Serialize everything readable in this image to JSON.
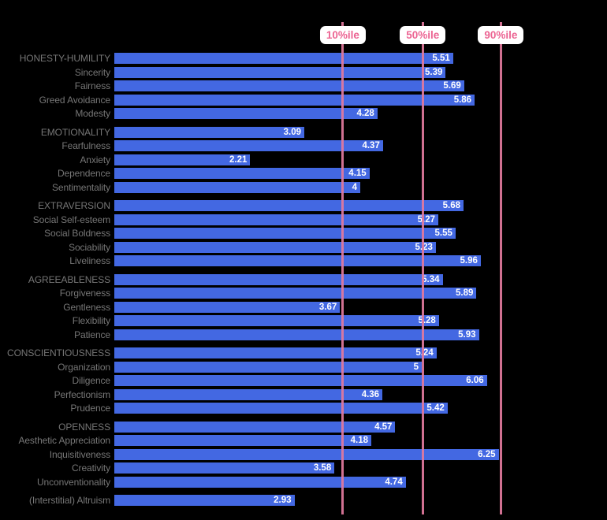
{
  "colors": {
    "background": "#000000",
    "bar": "#4368E2",
    "bar_value_text": "#FFFFFF",
    "row_label_text": "#767676",
    "percentile_line": "#E2799D",
    "percentile_label_text": "#EC6392",
    "percentile_label_bg": "#FFFFFF"
  },
  "chart_data": {
    "type": "bar",
    "orientation": "horizontal",
    "title": "",
    "xlabel": "",
    "ylabel": "",
    "axis": {
      "min": 0,
      "max": 7
    },
    "grid": false,
    "legend": false,
    "percentile_markers": [
      {
        "label": "10%ile",
        "value": 3.71
      },
      {
        "label": "50%ile",
        "value": 5.01
      },
      {
        "label": "90%ile",
        "value": 6.28
      }
    ],
    "groups": [
      {
        "name": "HONESTY-HUMILITY",
        "items": [
          {
            "label": "HONESTY-HUMILITY",
            "header": true,
            "value": 5.51,
            "display": "5.51"
          },
          {
            "label": "Sincerity",
            "header": false,
            "value": 5.39,
            "display": "5.39"
          },
          {
            "label": "Fairness",
            "header": false,
            "value": 5.69,
            "display": "5.69"
          },
          {
            "label": "Greed Avoidance",
            "header": false,
            "value": 5.86,
            "display": "5.86"
          },
          {
            "label": "Modesty",
            "header": false,
            "value": 4.28,
            "display": "4.28"
          }
        ]
      },
      {
        "name": "EMOTIONALITY",
        "items": [
          {
            "label": "EMOTIONALITY",
            "header": true,
            "value": 3.09,
            "display": "3.09"
          },
          {
            "label": "Fearfulness",
            "header": false,
            "value": 4.37,
            "display": "4.37"
          },
          {
            "label": "Anxiety",
            "header": false,
            "value": 2.21,
            "display": "2.21"
          },
          {
            "label": "Dependence",
            "header": false,
            "value": 4.15,
            "display": "4.15"
          },
          {
            "label": "Sentimentality",
            "header": false,
            "value": 4,
            "display": "4"
          }
        ]
      },
      {
        "name": "EXTRAVERSION",
        "items": [
          {
            "label": "EXTRAVERSION",
            "header": true,
            "value": 5.68,
            "display": "5.68"
          },
          {
            "label": "Social Self-esteem",
            "header": false,
            "value": 5.27,
            "display": "5.27"
          },
          {
            "label": "Social Boldness",
            "header": false,
            "value": 5.55,
            "display": "5.55"
          },
          {
            "label": "Sociability",
            "header": false,
            "value": 5.23,
            "display": "5.23"
          },
          {
            "label": "Liveliness",
            "header": false,
            "value": 5.96,
            "display": "5.96"
          }
        ]
      },
      {
        "name": "AGREEABLENESS",
        "items": [
          {
            "label": "AGREEABLENESS",
            "header": true,
            "value": 5.34,
            "display": "5.34"
          },
          {
            "label": "Forgiveness",
            "header": false,
            "value": 5.89,
            "display": "5.89"
          },
          {
            "label": "Gentleness",
            "header": false,
            "value": 3.67,
            "display": "3.67"
          },
          {
            "label": "Flexibility",
            "header": false,
            "value": 5.28,
            "display": "5.28"
          },
          {
            "label": "Patience",
            "header": false,
            "value": 5.93,
            "display": "5.93"
          }
        ]
      },
      {
        "name": "CONSCIENTIOUSNESS",
        "items": [
          {
            "label": "CONSCIENTIOUSNESS",
            "header": true,
            "value": 5.24,
            "display": "5.24"
          },
          {
            "label": "Organization",
            "header": false,
            "value": 5,
            "display": "5"
          },
          {
            "label": "Diligence",
            "header": false,
            "value": 6.06,
            "display": "6.06"
          },
          {
            "label": "Perfectionism",
            "header": false,
            "value": 4.36,
            "display": "4.36"
          },
          {
            "label": "Prudence",
            "header": false,
            "value": 5.42,
            "display": "5.42"
          }
        ]
      },
      {
        "name": "OPENNESS",
        "items": [
          {
            "label": "OPENNESS",
            "header": true,
            "value": 4.57,
            "display": "4.57"
          },
          {
            "label": "Aesthetic Appreciation",
            "header": false,
            "value": 4.18,
            "display": "4.18"
          },
          {
            "label": "Inquisitiveness",
            "header": false,
            "value": 6.25,
            "display": "6.25"
          },
          {
            "label": "Creativity",
            "header": false,
            "value": 3.58,
            "display": "3.58"
          },
          {
            "label": "Unconventionality",
            "header": false,
            "value": 4.74,
            "display": "4.74"
          }
        ]
      },
      {
        "name": "Interstitial",
        "items": [
          {
            "label": "(Interstitial) Altruism",
            "header": false,
            "value": 2.93,
            "display": "2.93"
          }
        ]
      }
    ]
  }
}
